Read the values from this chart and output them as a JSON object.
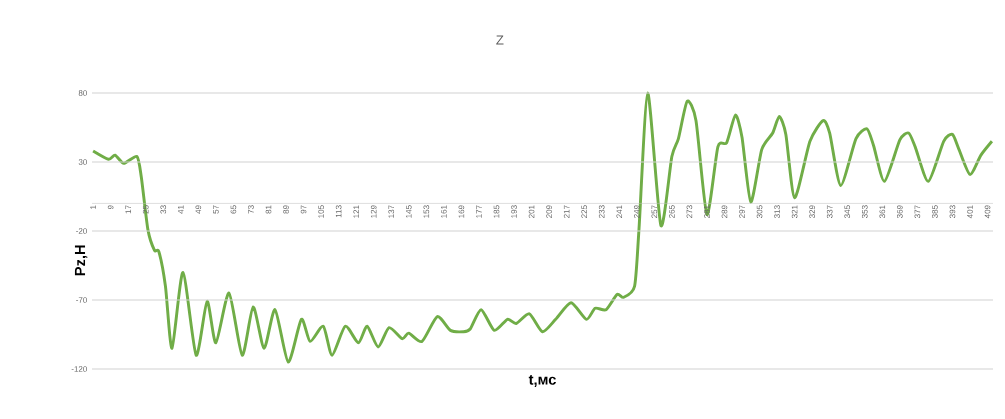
{
  "chart_data": {
    "type": "line",
    "title": "Z",
    "xlabel": "t,мс",
    "ylabel": "Pz,H",
    "x": [
      1,
      8,
      11,
      15,
      21,
      23,
      26,
      29,
      31,
      34,
      37,
      42,
      48,
      53,
      57,
      63,
      69,
      74,
      79,
      84,
      90,
      96,
      100,
      106,
      110,
      116,
      122,
      126,
      131,
      136,
      142,
      145,
      151,
      158,
      164,
      170,
      173,
      178,
      184,
      190,
      194,
      200,
      206,
      212,
      219,
      226,
      230,
      235,
      240,
      243,
      248,
      250,
      254,
      260,
      265,
      268,
      272,
      276,
      281,
      286,
      290,
      294,
      297,
      301,
      306,
      311,
      314,
      317,
      321,
      328,
      334,
      337,
      342,
      349,
      354,
      357,
      362,
      369,
      373,
      376,
      382,
      389,
      393,
      396,
      401,
      406,
      411
    ],
    "values": [
      38,
      32,
      35,
      29,
      34,
      19,
      -19,
      -34,
      -35,
      -60,
      -105,
      -50,
      -110,
      -71,
      -101,
      -65,
      -110,
      -75,
      -105,
      -77,
      -115,
      -84,
      -100,
      -89,
      -110,
      -89,
      -101,
      -89,
      -104,
      -90,
      -98,
      -94,
      -100,
      -82,
      -92,
      -93,
      -91,
      -77,
      -92,
      -84,
      -87,
      -80,
      -93,
      -84,
      -72,
      -84,
      -76,
      -77,
      -66,
      -68,
      -60,
      -19,
      80,
      -16,
      34,
      47,
      74,
      60,
      -8,
      41,
      44,
      64,
      48,
      1,
      39,
      51,
      63,
      50,
      4,
      45,
      60,
      51,
      13,
      47,
      54,
      42,
      16,
      46,
      51,
      41,
      16,
      45,
      50,
      39,
      21,
      35,
      45
    ],
    "color": "#70ad47",
    "line_style": "solid",
    "marker": "none",
    "grid": "y",
    "xlim": [
      0.5,
      411.5
    ],
    "ylim": [
      -120,
      80
    ],
    "xticks": [
      1,
      9,
      17,
      25,
      33,
      41,
      49,
      57,
      65,
      73,
      81,
      89,
      97,
      105,
      113,
      121,
      129,
      137,
      145,
      153,
      161,
      169,
      177,
      185,
      193,
      201,
      209,
      217,
      225,
      233,
      241,
      249,
      257,
      265,
      273,
      281,
      289,
      297,
      305,
      313,
      321,
      329,
      337,
      345,
      353,
      361,
      369,
      377,
      385,
      393,
      401,
      409
    ],
    "yticks": [
      -120,
      -70,
      -20,
      30,
      80
    ]
  }
}
